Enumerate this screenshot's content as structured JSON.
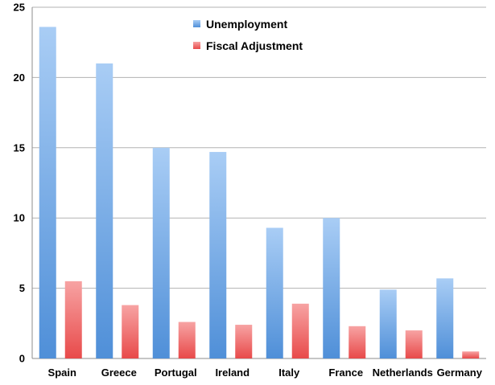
{
  "chart_data": {
    "type": "bar",
    "title": "",
    "xlabel": "",
    "ylabel": "",
    "categories": [
      "Spain",
      "Greece",
      "Portugal",
      "Ireland",
      "Italy",
      "France",
      "Netherlands",
      "Germany"
    ],
    "series": [
      {
        "name": "Unemployment",
        "color": "#7aaee6",
        "values": [
          23.6,
          21.0,
          15.0,
          14.7,
          9.3,
          10.0,
          4.9,
          5.7
        ]
      },
      {
        "name": "Fiscal Adjustment",
        "color": "#f26d6d",
        "values": [
          5.5,
          3.8,
          2.6,
          2.4,
          3.9,
          2.3,
          2.0,
          0.5
        ]
      }
    ],
    "ylim": [
      0,
      25
    ],
    "yticks": [
      0,
      5,
      10,
      15,
      20,
      25
    ],
    "grid": true,
    "legend_position": "top-center"
  }
}
